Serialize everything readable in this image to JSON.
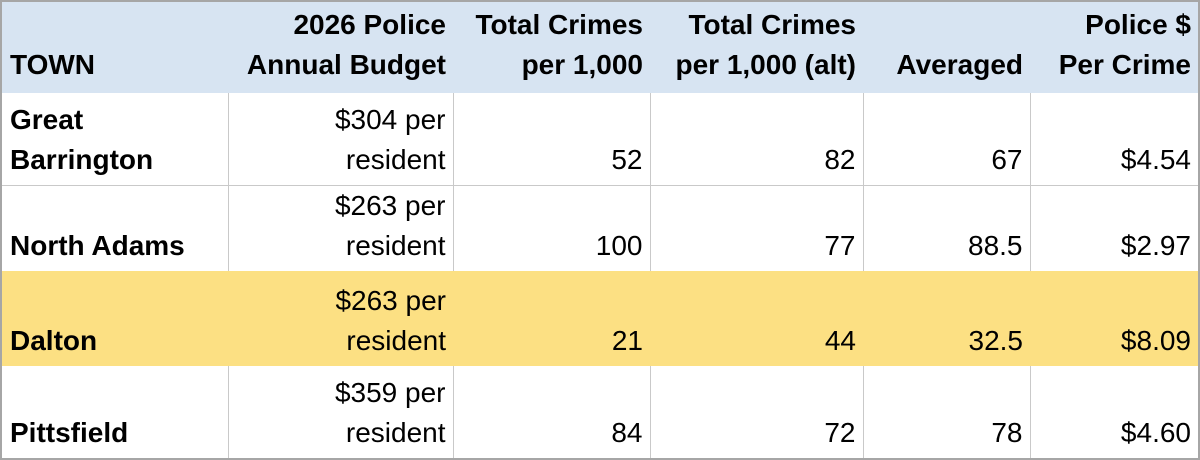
{
  "colors": {
    "header_bg": "#D7E4F2",
    "highlight_bg": "#FCE083",
    "gridline": "#C9C9C9",
    "outer_border": "#A6A6A6",
    "text": "#000000"
  },
  "display": {
    "header": {
      "town": "TOWN",
      "budget": "2026 Police\nAnnual Budget",
      "crimes": "Total Crimes\nper 1,000",
      "crimes_alt": "Total Crimes\nper 1,000 (alt)",
      "averaged": "Averaged",
      "per_crime": "Police $\nPer Crime"
    },
    "rows": [
      {
        "town": "Great\nBarrington",
        "budget": "$304 per\nresident",
        "crimes": "52",
        "crimes_alt": "82",
        "averaged": "67",
        "per_crime": "$4.54"
      },
      {
        "town": "North Adams",
        "budget": "$263 per\nresident",
        "crimes": "100",
        "crimes_alt": "77",
        "averaged": "88.5",
        "per_crime": "$2.97"
      },
      {
        "town": "Dalton",
        "budget": "$263 per\nresident",
        "crimes": "21",
        "crimes_alt": "44",
        "averaged": "32.5",
        "per_crime": "$8.09"
      },
      {
        "town": "Pittsfield",
        "budget": "$359 per\nresident",
        "crimes": "84",
        "crimes_alt": "72",
        "averaged": "78",
        "per_crime": "$4.60"
      }
    ]
  },
  "chart_data": {
    "type": "table",
    "columns": [
      "TOWN",
      "2026 Police Annual Budget",
      "Total Crimes per 1,000",
      "Total Crimes per 1,000 (alt)",
      "Averaged",
      "Police $ Per Crime"
    ],
    "rows": [
      [
        "Great Barrington",
        "$304 per resident",
        52,
        82,
        67,
        "$4.54"
      ],
      [
        "North Adams",
        "$263 per resident",
        100,
        77,
        88.5,
        "$2.97"
      ],
      [
        "Dalton",
        "$263 per resident",
        21,
        44,
        32.5,
        "$8.09"
      ],
      [
        "Pittsfield",
        "$359 per resident",
        84,
        72,
        78,
        "$4.60"
      ]
    ],
    "highlighted_row": "Dalton",
    "layout": {
      "header_fill": "#D7E4F2",
      "highlight_fill": "#FCE083",
      "town_column_align": "left",
      "other_columns_align": "right"
    }
  }
}
